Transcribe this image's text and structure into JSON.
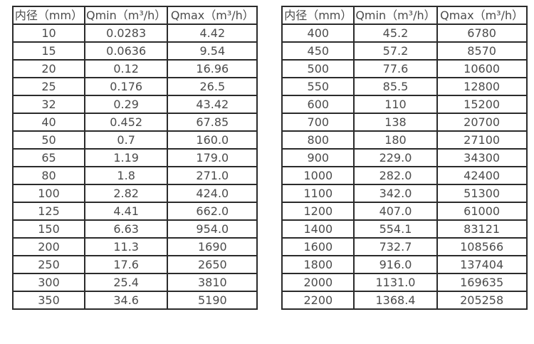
{
  "chart_data": [
    {
      "type": "table",
      "name": "flow-spec-table-small-diameters",
      "columns": [
        "内径（mm）",
        "Qmin（m³/h）",
        "Qmax（m³/h）"
      ],
      "rows": [
        [
          "10",
          "0.0283",
          "4.42"
        ],
        [
          "15",
          "0.0636",
          "9.54"
        ],
        [
          "20",
          "0.12",
          "16.96"
        ],
        [
          "25",
          "0.176",
          "26.5"
        ],
        [
          "32",
          "0.29",
          "43.42"
        ],
        [
          "40",
          "0.452",
          "67.85"
        ],
        [
          "50",
          "0.7",
          "160.0"
        ],
        [
          "65",
          "1.19",
          "179.0"
        ],
        [
          "80",
          "1.8",
          "271.0"
        ],
        [
          "100",
          "2.82",
          "424.0"
        ],
        [
          "125",
          "4.41",
          "662.0"
        ],
        [
          "150",
          "6.63",
          "954.0"
        ],
        [
          "200",
          "11.3",
          "1690"
        ],
        [
          "250",
          "17.6",
          "2650"
        ],
        [
          "300",
          "25.4",
          "3810"
        ],
        [
          "350",
          "34.6",
          "5190"
        ]
      ]
    },
    {
      "type": "table",
      "name": "flow-spec-table-large-diameters",
      "columns": [
        "内径（mm）",
        "Qmin（m³/h）",
        "Qmax（m³/h）"
      ],
      "rows": [
        [
          "400",
          "45.2",
          "6780"
        ],
        [
          "450",
          "57.2",
          "8570"
        ],
        [
          "500",
          "77.6",
          "10600"
        ],
        [
          "550",
          "85.5",
          "12800"
        ],
        [
          "600",
          "110",
          "15200"
        ],
        [
          "700",
          "138",
          "20700"
        ],
        [
          "800",
          "180",
          "27100"
        ],
        [
          "900",
          "229.0",
          "34300"
        ],
        [
          "1000",
          "282.0",
          "42400"
        ],
        [
          "1100",
          "342.0",
          "51300"
        ],
        [
          "1200",
          "407.0",
          "61000"
        ],
        [
          "1400",
          "554.1",
          "83121"
        ],
        [
          "1600",
          "732.7",
          "108566"
        ],
        [
          "1800",
          "916.0",
          "137404"
        ],
        [
          "2000",
          "1131.0",
          "169635"
        ],
        [
          "2200",
          "1368.4",
          "205258"
        ]
      ]
    }
  ],
  "style": {
    "border_color": "#2b2b2b",
    "text_color": "#4b4b4b",
    "background": "#ffffff"
  }
}
